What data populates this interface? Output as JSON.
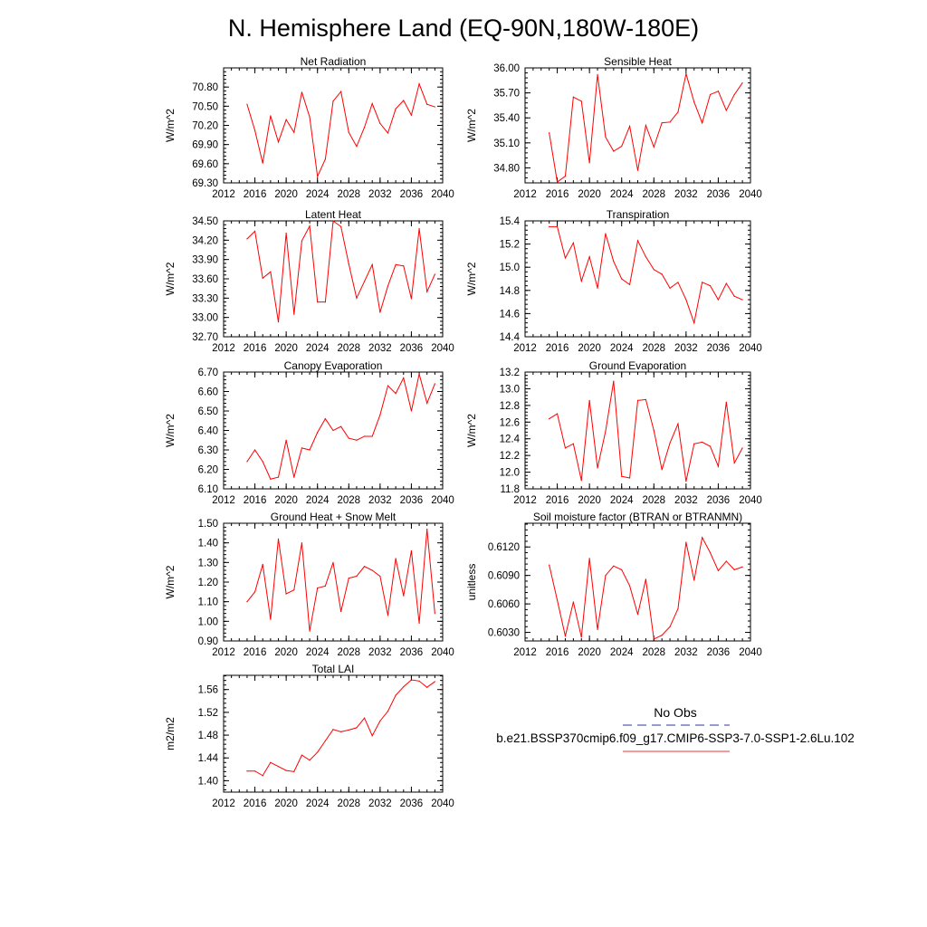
{
  "figure": {
    "title": "N. Hemisphere Land (EQ-90N,180W-180E)",
    "legend": {
      "obs_label": "No Obs",
      "obs_color": "#3333aa",
      "case_label": "b.e21.BSSP370cmip6.f09_g17.CMIP6-SSP3-7.0-SSP1-2.6Lu.102",
      "case_color": "#ee3333"
    },
    "line_color": "#ff0000"
  },
  "chart_data": [
    {
      "type": "line",
      "title": "Net Radiation",
      "ylabel": "W/m^2",
      "xlim": [
        2012,
        2040
      ],
      "ylim": [
        69.3,
        71.1
      ],
      "xticks": [
        "2012",
        "2016",
        "2020",
        "2024",
        "2028",
        "2032",
        "2036",
        "2040"
      ],
      "yticks": [
        "69.30",
        "69.60",
        "69.90",
        "70.20",
        "70.50",
        "70.80"
      ],
      "x": [
        2015,
        2016,
        2017,
        2018,
        2019,
        2020,
        2021,
        2022,
        2023,
        2024,
        2025,
        2026,
        2027,
        2028,
        2029,
        2030,
        2031,
        2032,
        2033,
        2034,
        2035,
        2036,
        2037,
        2038,
        2039
      ],
      "series": [
        {
          "values": [
            70.53,
            70.12,
            69.61,
            70.35,
            69.94,
            70.29,
            70.09,
            70.72,
            70.33,
            69.4,
            69.67,
            70.58,
            70.73,
            70.09,
            69.87,
            70.17,
            70.54,
            70.23,
            70.08,
            70.46,
            70.59,
            70.36,
            70.85,
            70.53,
            70.49
          ]
        }
      ]
    },
    {
      "type": "line",
      "title": "Sensible Heat",
      "ylabel": "W/m^2",
      "xlim": [
        2012,
        2040
      ],
      "ylim": [
        34.62,
        36.0
      ],
      "xticks": [
        "2012",
        "2016",
        "2020",
        "2024",
        "2028",
        "2032",
        "2036",
        "2040"
      ],
      "yticks": [
        "34.80",
        "35.10",
        "35.40",
        "35.70",
        "36.00"
      ],
      "x": [
        2015,
        2016,
        2017,
        2018,
        2019,
        2020,
        2021,
        2022,
        2023,
        2024,
        2025,
        2026,
        2027,
        2028,
        2029,
        2030,
        2031,
        2032,
        2033,
        2034,
        2035,
        2036,
        2037,
        2038,
        2039
      ],
      "series": [
        {
          "values": [
            35.22,
            34.63,
            34.7,
            35.65,
            35.6,
            34.86,
            35.92,
            35.17,
            35.0,
            35.06,
            35.3,
            34.77,
            35.31,
            35.05,
            35.34,
            35.35,
            35.47,
            35.93,
            35.59,
            35.34,
            35.68,
            35.72,
            35.49,
            35.68,
            35.82
          ]
        }
      ]
    },
    {
      "type": "line",
      "title": "Latent Heat",
      "ylabel": "W/m^2",
      "xlim": [
        2012,
        2040
      ],
      "ylim": [
        32.7,
        34.5
      ],
      "xticks": [
        "2012",
        "2016",
        "2020",
        "2024",
        "2028",
        "2032",
        "2036",
        "2040"
      ],
      "yticks": [
        "32.70",
        "33.00",
        "33.30",
        "33.60",
        "33.90",
        "34.20",
        "34.50"
      ],
      "x": [
        2015,
        2016,
        2017,
        2018,
        2019,
        2020,
        2021,
        2022,
        2023,
        2024,
        2025,
        2026,
        2027,
        2028,
        2029,
        2030,
        2031,
        2032,
        2033,
        2034,
        2035,
        2036,
        2037,
        2038,
        2039
      ],
      "series": [
        {
          "values": [
            34.22,
            34.34,
            33.61,
            33.71,
            32.93,
            34.31,
            33.05,
            34.19,
            34.42,
            33.24,
            33.24,
            34.5,
            34.41,
            33.83,
            33.3,
            33.56,
            33.82,
            33.08,
            33.49,
            33.82,
            33.8,
            33.29,
            34.38,
            33.4,
            33.67
          ]
        }
      ]
    },
    {
      "type": "line",
      "title": "Transpiration",
      "ylabel": "W/m^2",
      "xlim": [
        2012,
        2040
      ],
      "ylim": [
        14.4,
        15.4
      ],
      "xticks": [
        "2012",
        "2016",
        "2020",
        "2024",
        "2028",
        "2032",
        "2036",
        "2040"
      ],
      "yticks": [
        "14.4",
        "14.6",
        "14.8",
        "15.0",
        "15.2",
        "15.4"
      ],
      "x": [
        2015,
        2016,
        2017,
        2018,
        2019,
        2020,
        2021,
        2022,
        2023,
        2024,
        2025,
        2026,
        2027,
        2028,
        2029,
        2030,
        2031,
        2032,
        2033,
        2034,
        2035,
        2036,
        2037,
        2038,
        2039
      ],
      "series": [
        {
          "values": [
            15.35,
            15.35,
            15.08,
            15.21,
            14.88,
            15.09,
            14.82,
            15.29,
            15.05,
            14.9,
            14.85,
            15.23,
            15.09,
            14.98,
            14.94,
            14.82,
            14.87,
            14.72,
            14.52,
            14.87,
            14.84,
            14.72,
            14.86,
            14.75,
            14.72
          ]
        }
      ]
    },
    {
      "type": "line",
      "title": "Canopy Evaporation",
      "ylabel": "W/m^2",
      "xlim": [
        2012,
        2040
      ],
      "ylim": [
        6.1,
        6.7
      ],
      "xticks": [
        "2012",
        "2016",
        "2020",
        "2024",
        "2028",
        "2032",
        "2036",
        "2040"
      ],
      "yticks": [
        "6.10",
        "6.20",
        "6.30",
        "6.40",
        "6.50",
        "6.60",
        "6.70"
      ],
      "x": [
        2015,
        2016,
        2017,
        2018,
        2019,
        2020,
        2021,
        2022,
        2023,
        2024,
        2025,
        2026,
        2027,
        2028,
        2029,
        2030,
        2031,
        2032,
        2033,
        2034,
        2035,
        2036,
        2037,
        2038,
        2039
      ],
      "series": [
        {
          "values": [
            6.24,
            6.3,
            6.24,
            6.15,
            6.16,
            6.35,
            6.16,
            6.31,
            6.3,
            6.39,
            6.46,
            6.4,
            6.42,
            6.36,
            6.35,
            6.37,
            6.37,
            6.48,
            6.63,
            6.59,
            6.67,
            6.5,
            6.69,
            6.54,
            6.64
          ]
        }
      ]
    },
    {
      "type": "line",
      "title": "Ground Evaporation",
      "ylabel": "W/m^2",
      "xlim": [
        2012,
        2040
      ],
      "ylim": [
        11.8,
        13.2
      ],
      "xticks": [
        "2012",
        "2016",
        "2020",
        "2024",
        "2028",
        "2032",
        "2036",
        "2040"
      ],
      "yticks": [
        "11.8",
        "12.0",
        "12.2",
        "12.4",
        "12.6",
        "12.8",
        "13.0",
        "13.2"
      ],
      "x": [
        2015,
        2016,
        2017,
        2018,
        2019,
        2020,
        2021,
        2022,
        2023,
        2024,
        2025,
        2026,
        2027,
        2028,
        2029,
        2030,
        2031,
        2032,
        2033,
        2034,
        2035,
        2036,
        2037,
        2038,
        2039
      ],
      "series": [
        {
          "values": [
            12.64,
            12.7,
            12.29,
            12.34,
            11.9,
            12.86,
            12.05,
            12.49,
            13.09,
            11.95,
            11.93,
            12.86,
            12.87,
            12.5,
            12.03,
            12.35,
            12.58,
            11.89,
            12.34,
            12.36,
            12.31,
            12.07,
            12.84,
            12.11,
            12.29
          ]
        }
      ]
    },
    {
      "type": "line",
      "title": "Ground Heat + Snow Melt",
      "ylabel": "W/m^2",
      "xlim": [
        2012,
        2040
      ],
      "ylim": [
        0.9,
        1.5
      ],
      "xticks": [
        "2012",
        "2016",
        "2020",
        "2024",
        "2028",
        "2032",
        "2036",
        "2040"
      ],
      "yticks": [
        "0.90",
        "1.00",
        "1.10",
        "1.20",
        "1.30",
        "1.40",
        "1.50"
      ],
      "x": [
        2015,
        2016,
        2017,
        2018,
        2019,
        2020,
        2021,
        2022,
        2023,
        2024,
        2025,
        2026,
        2027,
        2028,
        2029,
        2030,
        2031,
        2032,
        2033,
        2034,
        2035,
        2036,
        2037,
        2038,
        2039
      ],
      "series": [
        {
          "values": [
            1.1,
            1.15,
            1.29,
            1.01,
            1.42,
            1.14,
            1.16,
            1.4,
            0.95,
            1.17,
            1.18,
            1.3,
            1.05,
            1.22,
            1.23,
            1.28,
            1.26,
            1.23,
            1.03,
            1.32,
            1.13,
            1.36,
            0.99,
            1.47,
            1.04
          ]
        }
      ]
    },
    {
      "type": "line",
      "title": "Soil moisture factor (BTRAN or BTRANMN)",
      "ylabel": "unitless",
      "xlim": [
        2012,
        2040
      ],
      "ylim": [
        0.6021,
        0.6145
      ],
      "xticks": [
        "2012",
        "2016",
        "2020",
        "2024",
        "2028",
        "2032",
        "2036",
        "2040"
      ],
      "yticks": [
        "0.6030",
        "0.6060",
        "0.6090",
        "0.6120"
      ],
      "x": [
        2015,
        2016,
        2017,
        2018,
        2019,
        2020,
        2021,
        2022,
        2023,
        2024,
        2025,
        2026,
        2027,
        2028,
        2029,
        2030,
        2031,
        2032,
        2033,
        2034,
        2035,
        2036,
        2037,
        2038,
        2039
      ],
      "series": [
        {
          "values": [
            0.6101,
            0.6064,
            0.6026,
            0.6062,
            0.6025,
            0.6108,
            0.6033,
            0.609,
            0.61,
            0.6096,
            0.6079,
            0.6049,
            0.6086,
            0.6023,
            0.6027,
            0.6036,
            0.6055,
            0.6125,
            0.6085,
            0.613,
            0.6114,
            0.6095,
            0.6105,
            0.6096,
            0.6099
          ]
        }
      ]
    },
    {
      "type": "line",
      "title": "Total LAI",
      "ylabel": "m2/m2",
      "xlim": [
        2012,
        2040
      ],
      "ylim": [
        1.38,
        1.585
      ],
      "xticks": [
        "2012",
        "2016",
        "2020",
        "2024",
        "2028",
        "2032",
        "2036",
        "2040"
      ],
      "yticks": [
        "1.40",
        "1.44",
        "1.48",
        "1.52",
        "1.56"
      ],
      "x": [
        2015,
        2016,
        2017,
        2018,
        2019,
        2020,
        2021,
        2022,
        2023,
        2024,
        2025,
        2026,
        2027,
        2028,
        2029,
        2030,
        2031,
        2032,
        2033,
        2034,
        2035,
        2036,
        2037,
        2038,
        2039
      ],
      "series": [
        {
          "values": [
            1.417,
            1.417,
            1.409,
            1.432,
            1.425,
            1.418,
            1.416,
            1.445,
            1.436,
            1.45,
            1.47,
            1.49,
            1.486,
            1.489,
            1.493,
            1.51,
            1.479,
            1.505,
            1.522,
            1.55,
            1.565,
            1.577,
            1.575,
            1.564,
            1.574
          ]
        }
      ]
    }
  ]
}
